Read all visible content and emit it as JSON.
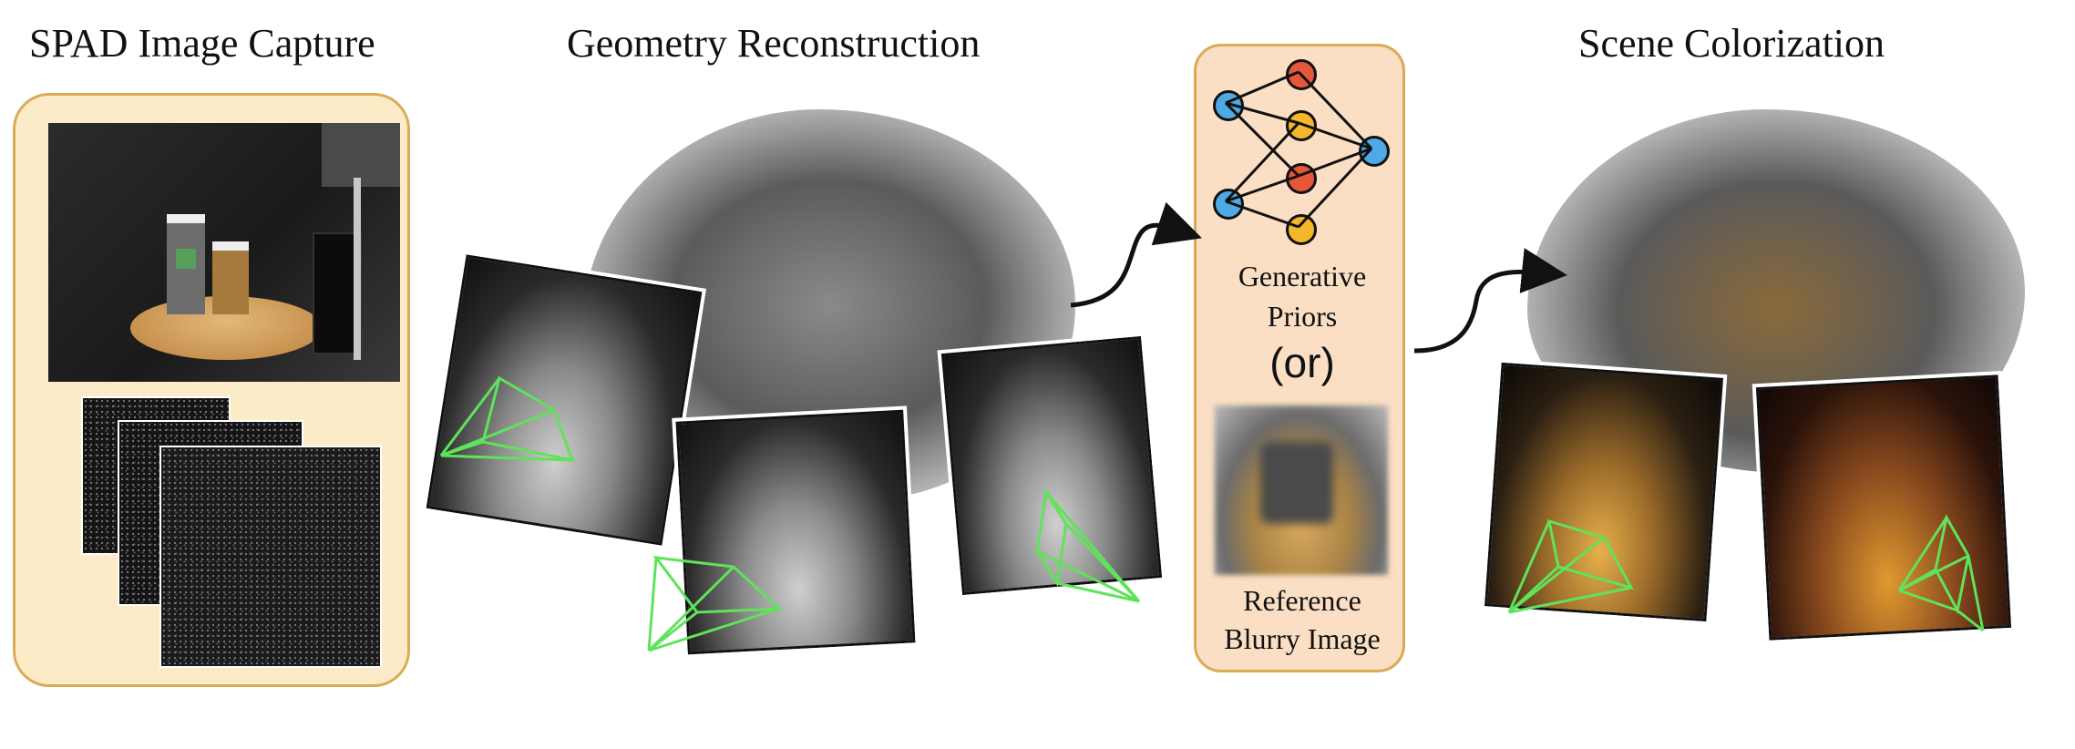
{
  "titles": {
    "capture": "SPAD Image Capture",
    "geometry": "Geometry Reconstruction",
    "colorization": "Scene Colorization"
  },
  "generative_panel": {
    "label_line1": "Generative",
    "label_line2": "Priors",
    "or_label": "(or)",
    "reference_line1": "Reference",
    "reference_line2": "Blurry Image"
  },
  "colors": {
    "panel_fill_capture": "#fbebc6",
    "panel_fill_generative": "#fbdfc4",
    "panel_border": "#d9ab55",
    "camera_frustum": "#5fe35a",
    "node_red": "#e5573a",
    "node_yellow": "#f4b62a",
    "node_blue": "#4ea9e4"
  },
  "icons": {
    "network": "neural-network-icon",
    "cameras": "camera-frustum-icon",
    "arrows": "curved-arrow-icon"
  }
}
